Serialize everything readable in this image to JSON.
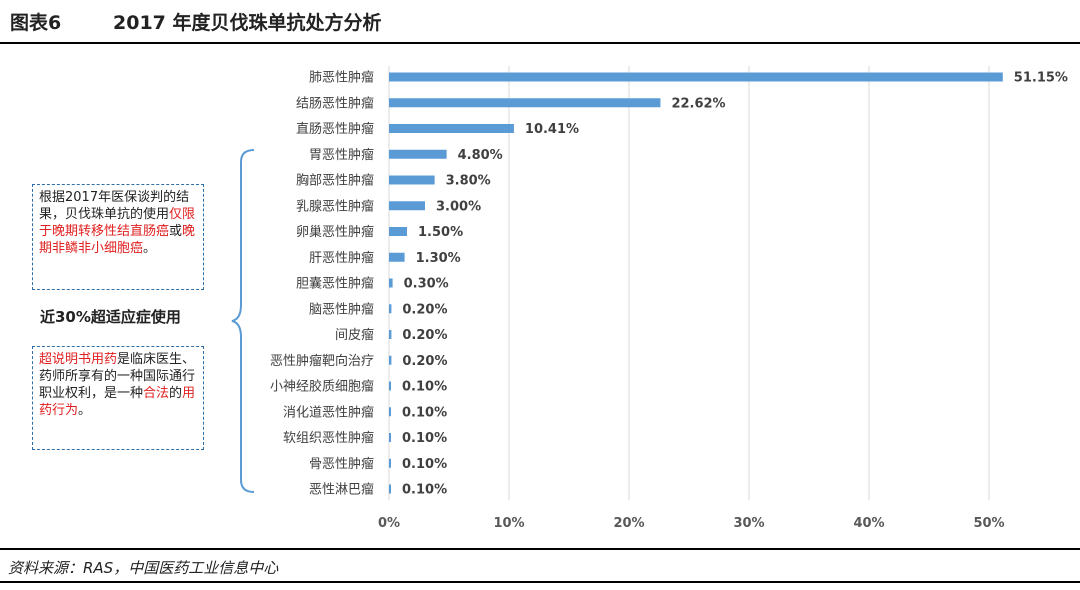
{
  "header": {
    "figure_no": "图表6",
    "title": "2017 年度贝伐珠单抗处方分析"
  },
  "source": "资料来源：RAS，中国医药工业信息中心",
  "note1": {
    "segments": [
      {
        "text": "根据2017年医保谈判的结果，贝伐珠单抗的使用",
        "hl": false
      },
      {
        "text": "仅限于晚期转移性结直肠癌",
        "hl": true
      },
      {
        "text": "或",
        "hl": false
      },
      {
        "text": "晚期非鳞非小细胞癌",
        "hl": true
      },
      {
        "text": "。",
        "hl": false
      }
    ]
  },
  "offlabel_caption": "近30%超适应症使用",
  "note2": {
    "segments": [
      {
        "text": "超说明书用药",
        "hl": true
      },
      {
        "text": "是临床医生、药师所享有的一种国际通行职业权利，是一种",
        "hl": false
      },
      {
        "text": "合法",
        "hl": true
      },
      {
        "text": "的",
        "hl": false
      },
      {
        "text": "用药行为",
        "hl": true
      },
      {
        "text": "。",
        "hl": false
      }
    ]
  },
  "colors": {
    "bar": "#5b9bd5",
    "highlight": "#e02020",
    "box_border": "#2f6fa8"
  },
  "chart_data": {
    "type": "bar",
    "orientation": "horizontal",
    "categories": [
      "肺恶性肿瘤",
      "结肠恶性肿瘤",
      "直肠恶性肿瘤",
      "胃恶性肿瘤",
      "胸部恶性肿瘤",
      "乳腺恶性肿瘤",
      "卵巢恶性肿瘤",
      "肝恶性肿瘤",
      "胆囊恶性肿瘤",
      "脑恶性肿瘤",
      "间皮瘤",
      "恶性肿瘤靶向治疗",
      "小神经胶质细胞瘤",
      "消化道恶性肿瘤",
      "软组织恶性肿瘤",
      "骨恶性肿瘤",
      "恶性淋巴瘤"
    ],
    "values": [
      51.15,
      22.62,
      10.41,
      4.8,
      3.8,
      3.0,
      1.5,
      1.3,
      0.3,
      0.2,
      0.2,
      0.2,
      0.1,
      0.1,
      0.1,
      0.1,
      0.1
    ],
    "data_labels": [
      "51.15%",
      "22.62%",
      "10.41%",
      "4.80%",
      "3.80%",
      "3.00%",
      "1.50%",
      "1.30%",
      "0.30%",
      "0.20%",
      "0.20%",
      "0.20%",
      "0.10%",
      "0.10%",
      "0.10%",
      "0.10%",
      "0.10%"
    ],
    "xticks": [
      "0%",
      "10%",
      "20%",
      "30%",
      "40%",
      "50%"
    ],
    "xlim": [
      0,
      50
    ],
    "grid": "vertical"
  }
}
